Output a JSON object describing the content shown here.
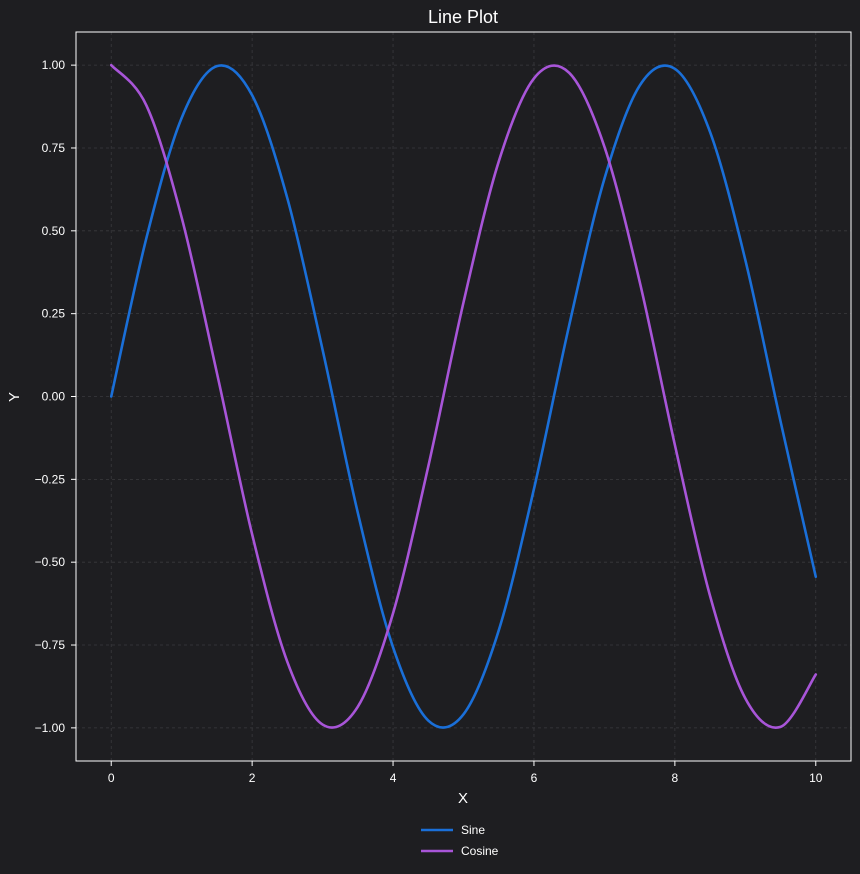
{
  "chart_data": {
    "type": "line",
    "title": "Line Plot",
    "xlabel": "X",
    "ylabel": "Y",
    "xlim": [
      -0.5,
      10.5
    ],
    "ylim": [
      -1.1,
      1.1
    ],
    "x_ticks": [
      0,
      2,
      4,
      6,
      8,
      10
    ],
    "x_tick_labels": [
      "0",
      "2",
      "4",
      "6",
      "8",
      "10"
    ],
    "y_ticks": [
      1.0,
      0.75,
      0.5,
      0.25,
      0.0,
      -0.25,
      -0.5,
      -0.75,
      -1.0
    ],
    "y_tick_labels": [
      "1.00",
      "0.75",
      "0.50",
      "0.25",
      "0.00",
      "−0.25",
      "−0.50",
      "−0.75",
      "−1.00"
    ],
    "grid": true,
    "legend_position": "bottom-center",
    "x": [
      0,
      0.5,
      1,
      1.5,
      2,
      2.5,
      3,
      3.5,
      4,
      4.5,
      5,
      5.5,
      6,
      6.5,
      7,
      7.5,
      8,
      8.5,
      9,
      9.5,
      10
    ],
    "series": [
      {
        "name": "Sine",
        "color": "#1a6fd8",
        "values": [
          0.0,
          0.479,
          0.841,
          0.997,
          0.909,
          0.598,
          0.141,
          -0.351,
          -0.757,
          -0.978,
          -0.959,
          -0.706,
          -0.279,
          0.215,
          0.657,
          0.938,
          0.989,
          0.798,
          0.412,
          -0.075,
          -0.544
        ]
      },
      {
        "name": "Cosine",
        "color": "#a855d8",
        "values": [
          1.0,
          0.878,
          0.54,
          0.071,
          -0.416,
          -0.801,
          -0.99,
          -0.936,
          -0.654,
          -0.211,
          0.284,
          0.709,
          0.96,
          0.977,
          0.754,
          0.347,
          -0.146,
          -0.602,
          -0.911,
          -0.997,
          -0.839
        ]
      }
    ]
  }
}
